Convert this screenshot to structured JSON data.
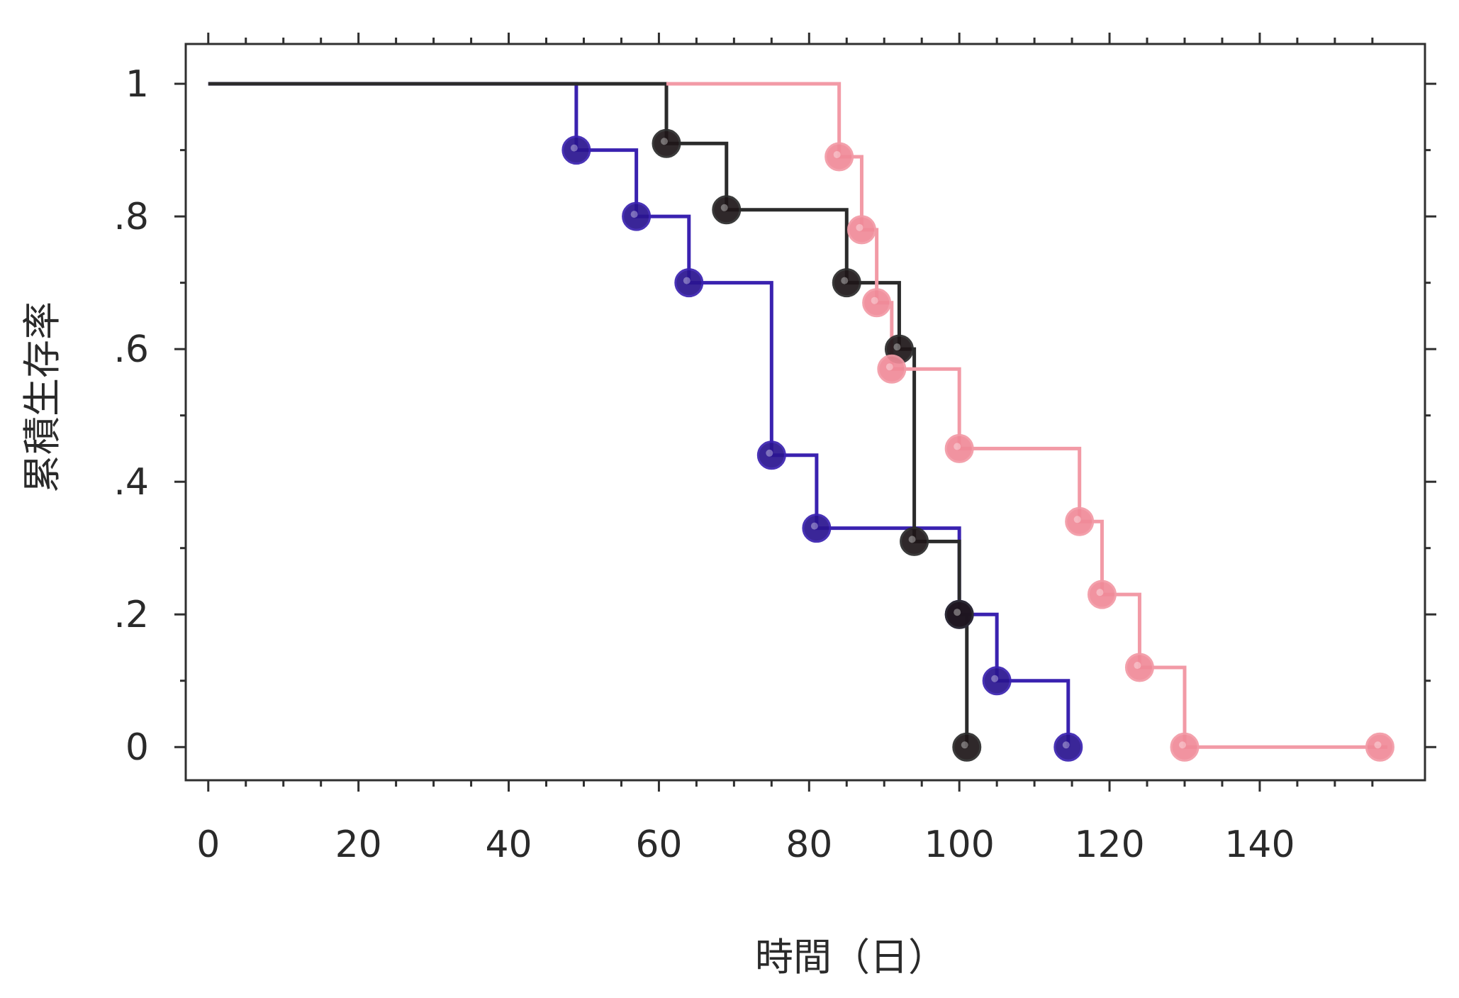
{
  "chart_data": {
    "type": "line",
    "subtype": "kaplan-meier step plot",
    "title": "",
    "xlabel": "時間（日）",
    "ylabel": "累積生存率",
    "xlim": [
      -3,
      162
    ],
    "ylim": [
      -0.05,
      1.06
    ],
    "x_ticks": [
      0,
      20,
      40,
      60,
      80,
      100,
      120,
      140
    ],
    "x_tick_labels": [
      "0",
      "20",
      "40",
      "60",
      "80",
      "100",
      "120",
      "140"
    ],
    "y_ticks": [
      0,
      0.2,
      0.4,
      0.6,
      0.8,
      1
    ],
    "y_tick_labels": [
      "0",
      ".2",
      ".4",
      ".6",
      ".8",
      "1"
    ],
    "grid": false,
    "legend": "none",
    "series": [
      {
        "color": "#3a22b0",
        "marker_color": "#2a1490",
        "start_x": 0,
        "end_x": 114.5,
        "events": [
          {
            "x": 49,
            "y": 0.9
          },
          {
            "x": 57,
            "y": 0.8
          },
          {
            "x": 64,
            "y": 0.7
          },
          {
            "x": 75,
            "y": 0.44
          },
          {
            "x": 81,
            "y": 0.33
          },
          {
            "x": 100,
            "y": 0.2
          },
          {
            "x": 105,
            "y": 0.1
          },
          {
            "x": 114.5,
            "y": 0
          }
        ]
      },
      {
        "color": "#2b2b2b",
        "marker_color": "#1e1618",
        "start_x": 0,
        "end_x": 101,
        "events": [
          {
            "x": 61,
            "y": 0.91
          },
          {
            "x": 69,
            "y": 0.81
          },
          {
            "x": 85,
            "y": 0.7
          },
          {
            "x": 92,
            "y": 0.6
          },
          {
            "x": 94,
            "y": 0.31
          },
          {
            "x": 100,
            "y": 0.2
          },
          {
            "x": 101,
            "y": 0
          }
        ]
      },
      {
        "color": "#f29aa6",
        "marker_color": "#f08a98",
        "start_x": 61,
        "end_x": 157,
        "events": [
          {
            "x": 84,
            "y": 0.89
          },
          {
            "x": 87,
            "y": 0.78
          },
          {
            "x": 89,
            "y": 0.67
          },
          {
            "x": 91,
            "y": 0.57
          },
          {
            "x": 100,
            "y": 0.45
          },
          {
            "x": 116,
            "y": 0.34
          },
          {
            "x": 119,
            "y": 0.23
          },
          {
            "x": 124,
            "y": 0.12
          },
          {
            "x": 130,
            "y": 0
          },
          {
            "x": 156,
            "y": 0
          }
        ]
      }
    ]
  }
}
